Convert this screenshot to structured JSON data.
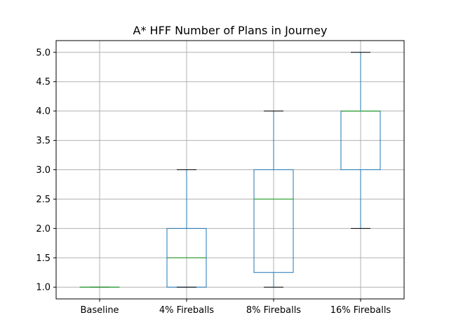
{
  "chart_data": {
    "type": "boxplot",
    "title": "A* HFF Number of Plans in Journey",
    "xlabel": "",
    "ylabel": "",
    "categories": [
      "Baseline",
      "4% Fireballs",
      "8% Fireballs",
      "16% Fireballs"
    ],
    "boxes": [
      {
        "category": "Baseline",
        "whislo": 1.0,
        "q1": 1.0,
        "med": 1.0,
        "q3": 1.0,
        "whishi": 1.0
      },
      {
        "category": "4% Fireballs",
        "whislo": 1.0,
        "q1": 1.0,
        "med": 1.5,
        "q3": 2.0,
        "whishi": 3.0
      },
      {
        "category": "8% Fireballs",
        "whislo": 1.0,
        "q1": 1.25,
        "med": 2.5,
        "q3": 3.0,
        "whishi": 4.0
      },
      {
        "category": "16% Fireballs",
        "whislo": 2.0,
        "q1": 3.0,
        "med": 4.0,
        "q3": 4.0,
        "whishi": 5.0
      }
    ],
    "ylim": [
      0.8,
      5.2
    ],
    "yticks": [
      "1.0",
      "1.5",
      "2.0",
      "2.5",
      "3.0",
      "3.5",
      "4.0",
      "4.5",
      "5.0"
    ],
    "grid": true,
    "colors": {
      "box": "#1f77b4",
      "median": "#2ca02c",
      "whisker_cap": "#000000",
      "grid": "#b0b0b0"
    }
  }
}
